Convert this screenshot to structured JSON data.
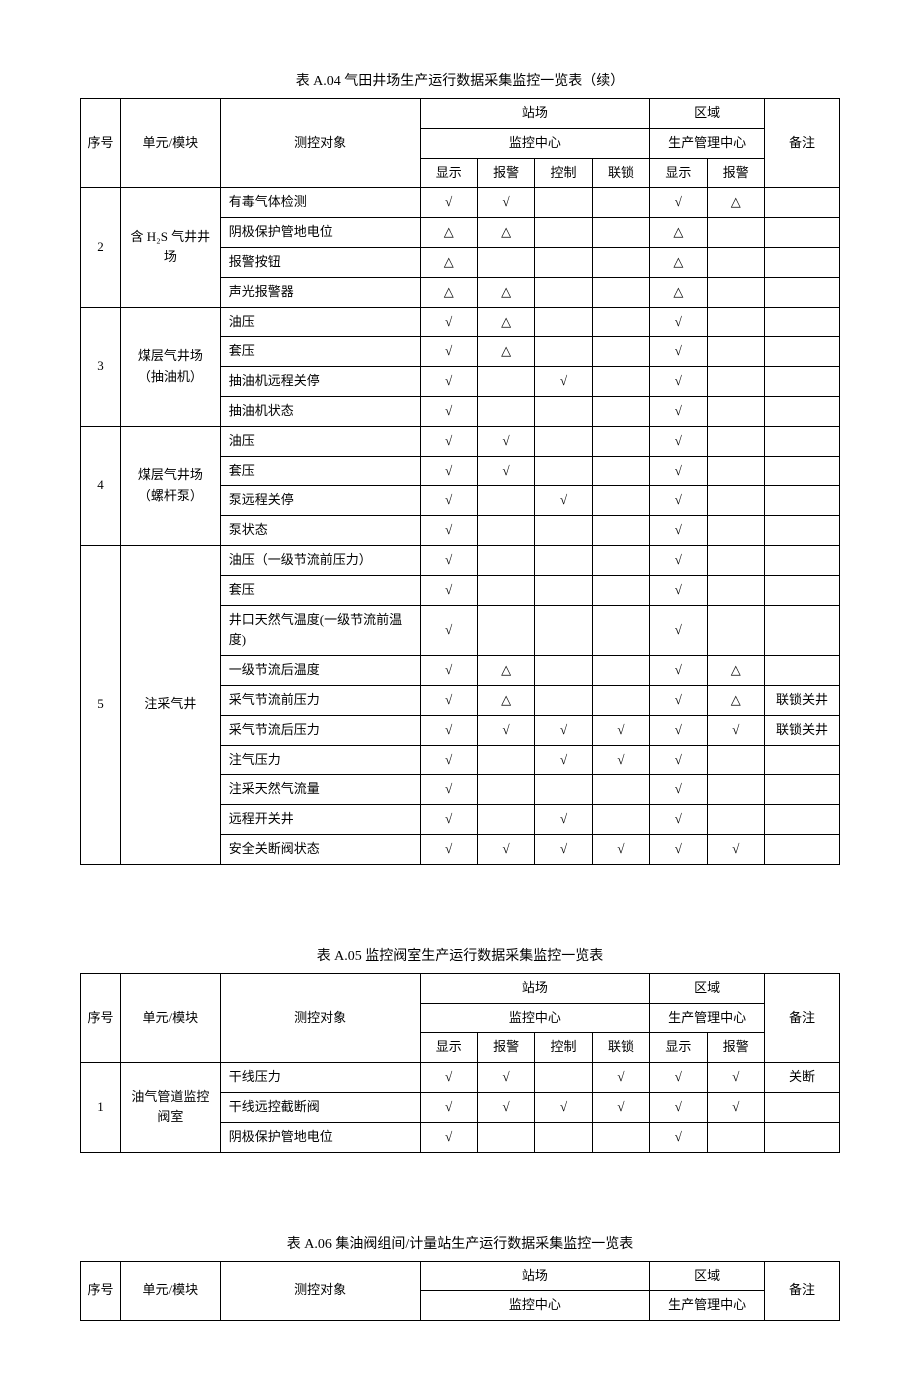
{
  "symbols": {
    "check": "√",
    "tri": "△"
  },
  "table1": {
    "title": "表 A.04 气田井场生产运行数据采集监控一览表（续）",
    "headers": {
      "seq": "序号",
      "unit": "单元/模块",
      "obj": "测控对象",
      "station": "站场",
      "stationSub": "监控中心",
      "region": "区域",
      "regionSub": "生产管理中心",
      "remark": "备注",
      "show": "显示",
      "alarm": "报警",
      "ctrl": "控制",
      "lock": "联锁"
    },
    "groups": [
      {
        "seq": "2",
        "unit": "含 H₂S 气井井场",
        "rows": [
          {
            "obj": "有毒气体检测",
            "c": [
              "√",
              "√",
              "",
              "",
              "√",
              "△",
              ""
            ]
          },
          {
            "obj": "阴极保护管地电位",
            "c": [
              "△",
              "△",
              "",
              "",
              "△",
              "",
              ""
            ]
          },
          {
            "obj": "报警按钮",
            "c": [
              "△",
              "",
              "",
              "",
              "△",
              "",
              ""
            ]
          },
          {
            "obj": "声光报警器",
            "c": [
              "△",
              "△",
              "",
              "",
              "△",
              "",
              ""
            ]
          }
        ]
      },
      {
        "seq": "3",
        "unit": "煤层气井场（抽油机）",
        "rows": [
          {
            "obj": "油压",
            "c": [
              "√",
              "△",
              "",
              "",
              "√",
              "",
              ""
            ]
          },
          {
            "obj": "套压",
            "c": [
              "√",
              "△",
              "",
              "",
              "√",
              "",
              ""
            ]
          },
          {
            "obj": "抽油机远程关停",
            "c": [
              "√",
              "",
              "√",
              "",
              "√",
              "",
              ""
            ]
          },
          {
            "obj": "抽油机状态",
            "c": [
              "√",
              "",
              "",
              "",
              "√",
              "",
              ""
            ]
          }
        ]
      },
      {
        "seq": "4",
        "unit": "煤层气井场（螺杆泵）",
        "rows": [
          {
            "obj": "油压",
            "c": [
              "√",
              "√",
              "",
              "",
              "√",
              "",
              ""
            ]
          },
          {
            "obj": "套压",
            "c": [
              "√",
              "√",
              "",
              "",
              "√",
              "",
              ""
            ]
          },
          {
            "obj": "泵远程关停",
            "c": [
              "√",
              "",
              "√",
              "",
              "√",
              "",
              ""
            ]
          },
          {
            "obj": "泵状态",
            "c": [
              "√",
              "",
              "",
              "",
              "√",
              "",
              ""
            ]
          }
        ]
      },
      {
        "seq": "5",
        "unit": "注采气井",
        "rows": [
          {
            "obj": "油压（一级节流前压力）",
            "c": [
              "√",
              "",
              "",
              "",
              "√",
              "",
              ""
            ]
          },
          {
            "obj": "套压",
            "c": [
              "√",
              "",
              "",
              "",
              "√",
              "",
              ""
            ]
          },
          {
            "obj": "井口天然气温度(一级节流前温度)",
            "c": [
              "√",
              "",
              "",
              "",
              "√",
              "",
              ""
            ]
          },
          {
            "obj": "一级节流后温度",
            "c": [
              "√",
              "△",
              "",
              "",
              "√",
              "△",
              ""
            ]
          },
          {
            "obj": "采气节流前压力",
            "c": [
              "√",
              "△",
              "",
              "",
              "√",
              "△",
              "联锁关井"
            ]
          },
          {
            "obj": "采气节流后压力",
            "c": [
              "√",
              "√",
              "√",
              "√",
              "√",
              "√",
              "联锁关井"
            ]
          },
          {
            "obj": "注气压力",
            "c": [
              "√",
              "",
              "√",
              "√",
              "√",
              "",
              ""
            ]
          },
          {
            "obj": "注采天然气流量",
            "c": [
              "√",
              "",
              "",
              "",
              "√",
              "",
              ""
            ]
          },
          {
            "obj": "远程开关井",
            "c": [
              "√",
              "",
              "√",
              "",
              "√",
              "",
              ""
            ]
          },
          {
            "obj": "安全关断阀状态",
            "c": [
              "√",
              "√",
              "√",
              "√",
              "√",
              "√",
              ""
            ]
          }
        ]
      }
    ]
  },
  "table2": {
    "title": "表 A.05 监控阀室生产运行数据采集监控一览表",
    "headers": {
      "seq": "序号",
      "unit": "单元/模块",
      "obj": "测控对象",
      "station": "站场",
      "stationSub": "监控中心",
      "region": "区域",
      "regionSub": "生产管理中心",
      "remark": "备注",
      "show": "显示",
      "alarm": "报警",
      "ctrl": "控制",
      "lock": "联锁"
    },
    "groups": [
      {
        "seq": "1",
        "unit": "油气管道监控阀室",
        "rows": [
          {
            "obj": "干线压力",
            "c": [
              "√",
              "√",
              "",
              "√",
              "√",
              "√",
              "关断"
            ]
          },
          {
            "obj": "干线远控截断阀",
            "c": [
              "√",
              "√",
              "√",
              "√",
              "√",
              "√",
              ""
            ]
          },
          {
            "obj": "阴极保护管地电位",
            "c": [
              "√",
              "",
              "",
              "",
              "√",
              "",
              ""
            ]
          }
        ]
      }
    ]
  },
  "table3": {
    "title": "表 A.06 集油阀组间/计量站生产运行数据采集监控一览表",
    "headers": {
      "seq": "序号",
      "unit": "单元/模块",
      "obj": "测控对象",
      "station": "站场",
      "stationSub": "监控中心",
      "region": "区域",
      "regionSub": "生产管理中心",
      "remark": "备注"
    }
  }
}
